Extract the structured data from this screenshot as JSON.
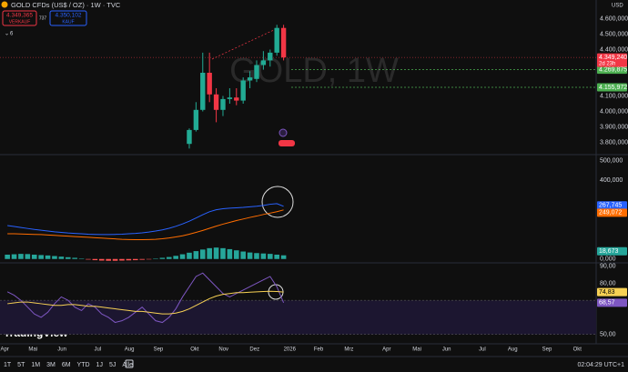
{
  "chart_data": {
    "type": "candlestick",
    "title": "GOLD CFDs (US$ / OZ) · 1W · TVC",
    "watermark": "GOLD, 1W",
    "sell": {
      "price": "4.349,365",
      "label": "VERKAUF"
    },
    "spread": "737",
    "buy": {
      "price": "4.350,102",
      "label": "KAUF"
    },
    "indicator_count": "6",
    "currency": "USD",
    "logo": "TradingView",
    "xlim": [
      -1.1,
      87.4
    ],
    "xticks": [
      {
        "value": -0.4,
        "label": "Apr"
      },
      {
        "value": 3.8,
        "label": "Mai"
      },
      {
        "value": 8.1,
        "label": "Jun"
      },
      {
        "value": 13.4,
        "label": "Jul"
      },
      {
        "value": 18.1,
        "label": "Aug"
      },
      {
        "value": 22.4,
        "label": "Sep"
      },
      {
        "value": 27.8,
        "label": "Okt"
      },
      {
        "value": 32.1,
        "label": "Nov"
      },
      {
        "value": 36.7,
        "label": "Dez"
      },
      {
        "value": 41.9,
        "label": "2026"
      },
      {
        "value": 46.2,
        "label": "Feb"
      },
      {
        "value": 50.7,
        "label": "Mrz"
      },
      {
        "value": 56.3,
        "label": "Apr"
      },
      {
        "value": 60.8,
        "label": "Mai"
      },
      {
        "value": 65.2,
        "label": "Jun"
      },
      {
        "value": 70.5,
        "label": "Jul"
      },
      {
        "value": 75,
        "label": "Aug"
      },
      {
        "value": 80.1,
        "label": "Sep"
      },
      {
        "value": 84.6,
        "label": "Okt"
      }
    ],
    "up_color": "#22ab94",
    "down_color": "#f23645",
    "candles": {
      "x": [
        27,
        28,
        29,
        30,
        31,
        32,
        33,
        34,
        35,
        36,
        37,
        38,
        39,
        40,
        41
      ],
      "open": [
        3790000,
        3880000,
        4010000,
        4250000,
        4110000,
        4010000,
        4080000,
        4090000,
        4070000,
        4200000,
        4210000,
        4300000,
        4330000,
        4380000,
        4540000
      ],
      "high": [
        3890000,
        4060000,
        4380000,
        4380000,
        4150000,
        4100000,
        4150000,
        4150000,
        4220000,
        4260000,
        4330000,
        4390000,
        4400000,
        4560000,
        4560000
      ],
      "low": [
        3760000,
        3870000,
        4000000,
        4060000,
        3930000,
        3970000,
        4050000,
        4040000,
        4050000,
        4150000,
        4190000,
        4270000,
        4290000,
        4360000,
        4330000
      ],
      "close": [
        3880000,
        4010000,
        4250000,
        4110000,
        4010000,
        4080000,
        4090000,
        4070000,
        4200000,
        4220000,
        4300000,
        4330000,
        4380000,
        4540000,
        4349240
      ]
    },
    "ylim": [
      3750000,
      4650000
    ],
    "yticks": [
      {
        "value": 4600000,
        "label": "4.600,000"
      },
      {
        "value": 4500000,
        "label": "4.500,000"
      },
      {
        "value": 4400000,
        "label": "4.400,000"
      },
      {
        "value": 4100000,
        "label": "4.100,000"
      },
      {
        "value": 4000000,
        "label": "4.000,000"
      },
      {
        "value": 3900000,
        "label": "3.900,000"
      },
      {
        "value": 3800000,
        "label": "3.800,000"
      }
    ],
    "last_price": {
      "value": 4349240,
      "label": "4.349,240"
    },
    "countdown": "2d 23h",
    "levels": [
      {
        "value": 4269875,
        "label": "4.269,875",
        "color": "#4caf50"
      },
      {
        "value": 4155972,
        "label": "4.155,972",
        "color": "#4caf50"
      }
    ],
    "x": [
      0,
      1,
      2,
      3,
      4,
      5,
      6,
      7,
      8,
      9,
      10,
      11,
      12,
      13,
      14,
      15,
      16,
      17,
      18,
      19,
      20,
      21,
      22,
      23,
      24,
      25,
      26,
      27,
      28,
      29,
      30,
      31,
      32,
      33,
      34,
      35,
      36,
      37,
      38,
      39,
      40,
      41
    ],
    "macd": {
      "ylim": [
        -15000,
        530000
      ],
      "yticks": [
        {
          "value": 500000,
          "label": "500,000"
        },
        {
          "value": 400000,
          "label": "400,000"
        },
        {
          "value": 0,
          "label": "0,000"
        }
      ],
      "histogram": {
        "values": [
          22000,
          24000,
          26000,
          25000,
          22000,
          20000,
          18000,
          15000,
          12000,
          9000,
          6000,
          2000,
          -3000,
          -6000,
          -8000,
          -9000,
          -9000,
          -8000,
          -7000,
          -6000,
          -4000,
          -2000,
          2000,
          6000,
          10000,
          16000,
          24000,
          32000,
          40000,
          48000,
          55000,
          58000,
          55000,
          50000,
          44000,
          38000,
          33000,
          30000,
          28000,
          26000,
          22000,
          18673
        ],
        "last_label": "18,673",
        "up_color": "#26a69a",
        "down_color": "#ff5252"
      },
      "series": [
        {
          "color": "#2962ff",
          "last_label": "267,745",
          "values": [
            170000,
            165000,
            160000,
            155000,
            150000,
            146000,
            142000,
            138000,
            135000,
            132000,
            130000,
            128000,
            126000,
            125000,
            124000,
            124000,
            125000,
            126000,
            128000,
            130000,
            133000,
            137000,
            142000,
            148000,
            156000,
            166000,
            178000,
            192000,
            208000,
            225000,
            240000,
            250000,
            255000,
            258000,
            260000,
            262000,
            265000,
            268000,
            272000,
            278000,
            281000,
            267745
          ]
        },
        {
          "color": "#ff6d00",
          "last_label": "249,072",
          "values": [
            128000,
            128000,
            127000,
            126000,
            125000,
            124000,
            122000,
            120000,
            118000,
            116000,
            114000,
            112000,
            110000,
            108000,
            106000,
            104000,
            102000,
            100000,
            99000,
            98000,
            98000,
            99000,
            100000,
            103000,
            107000,
            112000,
            118000,
            126000,
            135000,
            145000,
            156000,
            167000,
            177000,
            186000,
            195000,
            203000,
            211000,
            218000,
            226000,
            233000,
            240000,
            249072
          ]
        }
      ]
    },
    "rsi": {
      "ylim": [
        45,
        92
      ],
      "yticks": [
        {
          "value": 90,
          "label": "90,00"
        },
        {
          "value": 80,
          "label": "80,00"
        },
        {
          "value": 50,
          "label": "50,00"
        }
      ],
      "band": [
        50,
        70
      ],
      "series": [
        {
          "color": "#7e57c2",
          "last_label": "68,57",
          "values": [
            75,
            73,
            70,
            66,
            62,
            60,
            63,
            68,
            72,
            70,
            66,
            64,
            68,
            66,
            62,
            60,
            57,
            58,
            60,
            63,
            66,
            62,
            58,
            57,
            60,
            65,
            72,
            78,
            84,
            86,
            82,
            78,
            74,
            72,
            74,
            76,
            78,
            80,
            82,
            84,
            78,
            68.57
          ]
        },
        {
          "color": "#f7d154",
          "last_label": "74,83",
          "values": [
            68,
            68.5,
            69,
            69,
            68.5,
            68,
            67.5,
            67,
            67,
            67.5,
            67.5,
            67,
            66.5,
            66.5,
            66,
            65.5,
            65,
            64.5,
            64,
            63.5,
            63.5,
            63,
            62.5,
            62,
            62,
            62.5,
            63.5,
            65,
            67,
            69,
            71,
            72.5,
            73.5,
            74,
            74.5,
            74.5,
            74.8,
            75,
            75.2,
            75.3,
            75.2,
            74.83
          ]
        }
      ]
    }
  },
  "toolbar": {
    "ranges": [
      "1T",
      "5T",
      "1M",
      "3M",
      "6M",
      "YTD",
      "1J",
      "5J",
      "Alle"
    ],
    "clock": "02:04:29 UTC+1"
  }
}
